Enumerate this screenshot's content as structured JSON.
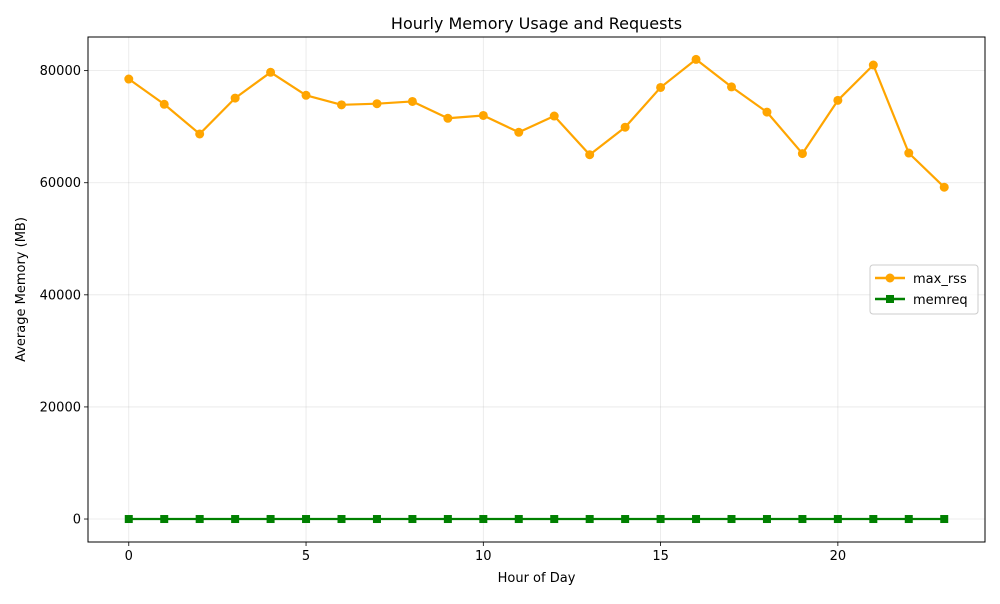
{
  "chart_data": {
    "type": "line",
    "title": "Hourly Memory Usage and Requests",
    "xlabel": "Hour of Day",
    "ylabel": "Average Memory (MB)",
    "x": [
      0,
      1,
      2,
      3,
      4,
      5,
      6,
      7,
      8,
      9,
      10,
      11,
      12,
      13,
      14,
      15,
      16,
      17,
      18,
      19,
      20,
      21,
      22,
      23
    ],
    "xlim": [
      -1.15,
      24.15
    ],
    "ylim": [
      -4100,
      86000
    ],
    "xticks": [
      0,
      5,
      10,
      15,
      20
    ],
    "yticks": [
      0,
      20000,
      40000,
      60000,
      80000
    ],
    "grid": true,
    "legend_position": "center-right",
    "series": [
      {
        "name": "max_rss",
        "color": "#FFA500",
        "marker": "circle",
        "values": [
          78500,
          74000,
          68700,
          75100,
          79700,
          75600,
          73900,
          74100,
          74500,
          71500,
          72000,
          69000,
          71900,
          65000,
          69900,
          77000,
          82000,
          77100,
          72600,
          65200,
          74700,
          81000,
          65300,
          59200
        ]
      },
      {
        "name": "memreq",
        "color": "#008000",
        "marker": "square",
        "values": [
          0,
          0,
          0,
          0,
          0,
          0,
          0,
          0,
          0,
          0,
          0,
          0,
          0,
          0,
          0,
          0,
          0,
          0,
          0,
          0,
          0,
          0,
          0,
          0
        ]
      }
    ]
  }
}
